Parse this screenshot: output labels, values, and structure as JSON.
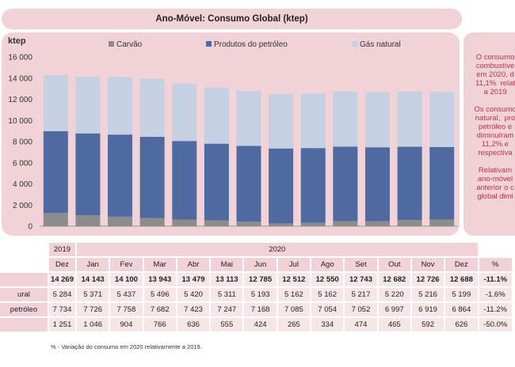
{
  "title": "Ano-Móvel: Consumo Global (ktep)",
  "chart_data": {
    "type": "bar",
    "stacked": true,
    "ylabel": "ktep",
    "ylim": [
      0,
      16000
    ],
    "yticks": [
      "0",
      "2 000",
      "4 000",
      "6 000",
      "8 000",
      "10 000",
      "12 000",
      "14 000",
      "16 000"
    ],
    "legend_position": "top",
    "grid": false,
    "categories": [
      "Dez 2019",
      "Jan",
      "Fev",
      "Mar",
      "Abr",
      "Mai",
      "Jun",
      "Jul",
      "Ago",
      "Set",
      "Out",
      "Nov",
      "Dez"
    ],
    "series": [
      {
        "name": "Carvão",
        "color": "#8c8c8c",
        "values": [
          1251,
          1046,
          904,
          766,
          636,
          555,
          424,
          265,
          334,
          474,
          465,
          592,
          626
        ]
      },
      {
        "name": "Produtos do petróleo",
        "color": "#4f6aa0",
        "values": [
          7734,
          7726,
          7758,
          7682,
          7423,
          7247,
          7168,
          7085,
          7054,
          7052,
          6997,
          6919,
          6864
        ]
      },
      {
        "name": "Gás natural",
        "color": "#c6d0e3",
        "values": [
          5284,
          5371,
          5437,
          5496,
          5420,
          5311,
          5193,
          5162,
          5162,
          5217,
          5220,
          5216,
          5199
        ]
      }
    ]
  },
  "side_text": [
    "O consumo\ncombustíve\nem 2020, d\n11,1%  relat\na 2019",
    "Os consumo\nnatural,  pro\npetróleo e\ndiminuíram\n11,2% e\nrespectiva",
    "Relativam\nano-móvel\nanterior o c\nglobal dimi"
  ],
  "table": {
    "year_2019": "2019",
    "year_2020": "2020",
    "months": [
      "Dez",
      "Jan",
      "Fev",
      "Mar",
      "Abr",
      "Mai",
      "Jun",
      "Jul",
      "Ago",
      "Set",
      "Out",
      "Nov",
      "Dez"
    ],
    "pct_header": "%",
    "rows": [
      {
        "label": "",
        "values": [
          "14 269",
          "14 143",
          "14 100",
          "13 943",
          "13 479",
          "13 113",
          "12 785",
          "12 512",
          "12 550",
          "12 743",
          "12 682",
          "12 726",
          "12 688"
        ],
        "pct": "-11.1%"
      },
      {
        "label": "ural",
        "values": [
          "5 284",
          "5 371",
          "5 437",
          "5 496",
          "5 420",
          "5 311",
          "5 193",
          "5 162",
          "5 162",
          "5 217",
          "5 220",
          "5 216",
          "5 199"
        ],
        "pct": "-1.6%"
      },
      {
        "label": "petróleo",
        "values": [
          "7 734",
          "7 726",
          "7 758",
          "7 682",
          "7 423",
          "7 247",
          "7 168",
          "7 085",
          "7 054",
          "7 052",
          "6 997",
          "6 919",
          "6 864"
        ],
        "pct": "-11.2%"
      },
      {
        "label": "",
        "values": [
          "1 251",
          "1 046",
          "904",
          "766",
          "636",
          "555",
          "424",
          "265",
          "334",
          "474",
          "465",
          "592",
          "626"
        ],
        "pct": "-50.0%"
      }
    ]
  },
  "footnote": "% - Variação do consumo em 2020 relativamente a 2019."
}
